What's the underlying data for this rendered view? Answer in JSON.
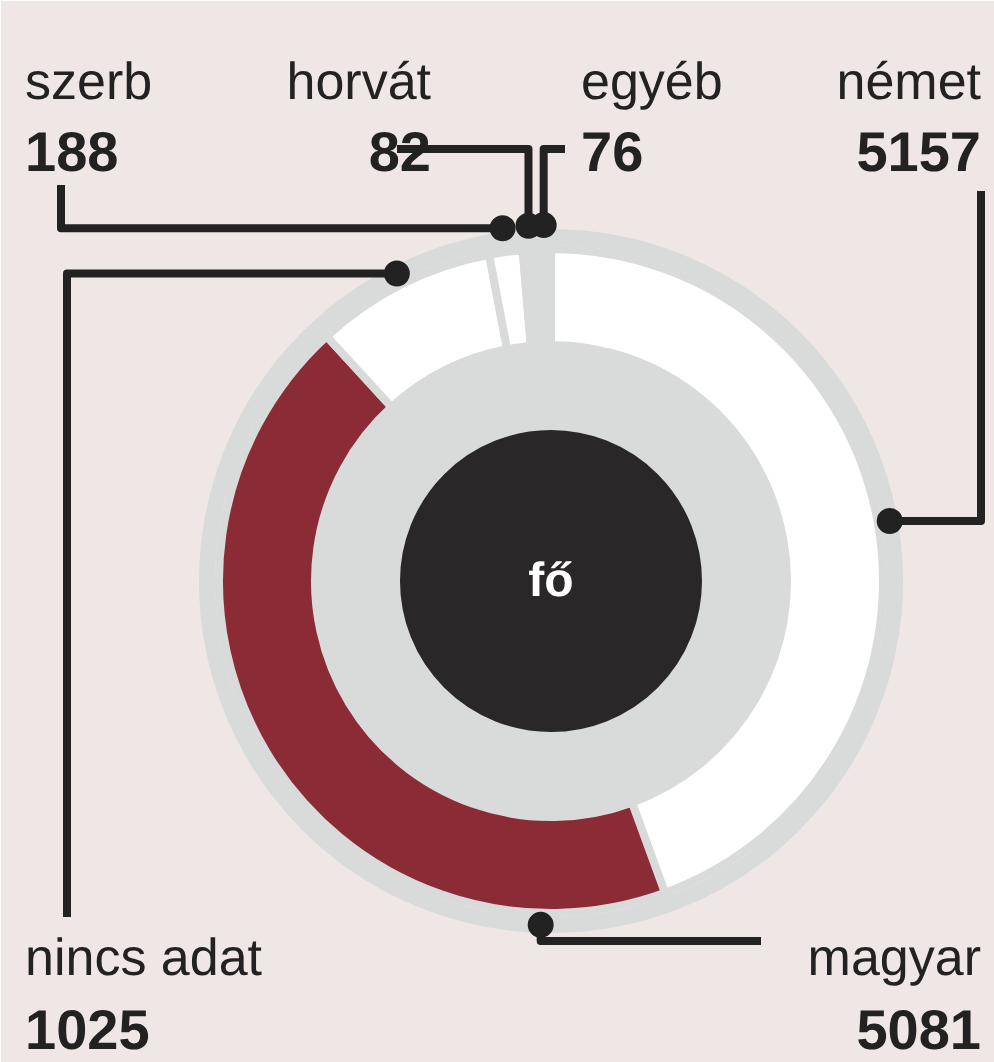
{
  "chart_data": {
    "type": "donut",
    "categories": [
      "német",
      "magyar",
      "nincs adat",
      "szerb",
      "horvát",
      "egyéb"
    ],
    "values": [
      5157,
      5081,
      1025,
      188,
      82,
      76
    ],
    "colors": [
      "#ffffff",
      "#8b2b35",
      "#ffffff",
      "#ffffff",
      "#d9dada",
      "#d9dada"
    ],
    "data_labels": true,
    "annotations": [
      "fő"
    ]
  }
}
